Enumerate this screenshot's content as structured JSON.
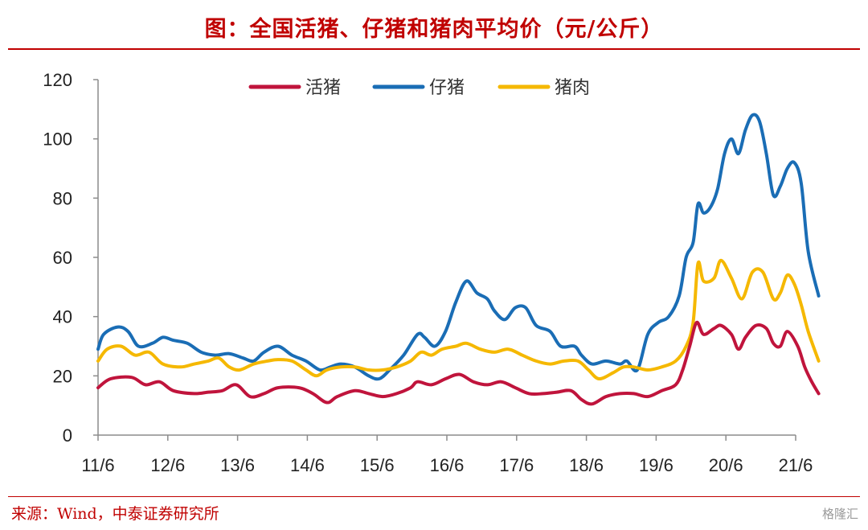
{
  "title": "图：全国活猪、仔猪和猪肉平均价（元/公斤）",
  "source": "来源：Wind，中泰证券研究所",
  "watermark": "格隆汇",
  "chart_data": {
    "type": "line",
    "xlabel": "",
    "ylabel": "",
    "ylim": [
      0,
      120
    ],
    "yticks": [
      "0",
      "20",
      "40",
      "60",
      "80",
      "100",
      "120"
    ],
    "xticks": [
      "11/6",
      "12/6",
      "13/6",
      "14/6",
      "15/6",
      "16/6",
      "17/6",
      "18/6",
      "19/6",
      "20/6",
      "21/6"
    ],
    "grid": false,
    "legend_position": "top-center",
    "series": [
      {
        "name": "活猪",
        "color": "#c0143c",
        "points": [
          [
            2011.42,
            16
          ],
          [
            2011.6,
            19
          ],
          [
            2011.9,
            19.5
          ],
          [
            2012.1,
            17
          ],
          [
            2012.3,
            18
          ],
          [
            2012.5,
            15
          ],
          [
            2012.8,
            14
          ],
          [
            2013.0,
            14.5
          ],
          [
            2013.2,
            15
          ],
          [
            2013.4,
            17
          ],
          [
            2013.6,
            13
          ],
          [
            2013.8,
            14
          ],
          [
            2014.0,
            16
          ],
          [
            2014.3,
            16
          ],
          [
            2014.5,
            14
          ],
          [
            2014.7,
            11
          ],
          [
            2014.85,
            13
          ],
          [
            2015.1,
            15
          ],
          [
            2015.3,
            14
          ],
          [
            2015.5,
            13
          ],
          [
            2015.7,
            14
          ],
          [
            2015.9,
            16
          ],
          [
            2016.0,
            18
          ],
          [
            2016.2,
            17
          ],
          [
            2016.4,
            19
          ],
          [
            2016.6,
            20.5
          ],
          [
            2016.8,
            18
          ],
          [
            2017.0,
            17
          ],
          [
            2017.2,
            18
          ],
          [
            2017.4,
            16
          ],
          [
            2017.6,
            14
          ],
          [
            2017.8,
            14
          ],
          [
            2018.0,
            14.5
          ],
          [
            2018.2,
            15
          ],
          [
            2018.35,
            12
          ],
          [
            2018.5,
            10.5
          ],
          [
            2018.7,
            13
          ],
          [
            2018.9,
            14
          ],
          [
            2019.1,
            14
          ],
          [
            2019.3,
            13
          ],
          [
            2019.5,
            15
          ],
          [
            2019.7,
            17
          ],
          [
            2019.8,
            22
          ],
          [
            2019.9,
            30
          ],
          [
            2020.0,
            38
          ],
          [
            2020.1,
            34
          ],
          [
            2020.25,
            36
          ],
          [
            2020.35,
            37
          ],
          [
            2020.5,
            34
          ],
          [
            2020.6,
            29
          ],
          [
            2020.7,
            33
          ],
          [
            2020.85,
            37
          ],
          [
            2021.0,
            36
          ],
          [
            2021.1,
            31
          ],
          [
            2021.2,
            30
          ],
          [
            2021.3,
            35
          ],
          [
            2021.45,
            30
          ],
          [
            2021.55,
            23
          ],
          [
            2021.65,
            18
          ],
          [
            2021.75,
            14
          ]
        ]
      },
      {
        "name": "仔猪",
        "color": "#1a6db5",
        "points": [
          [
            2011.42,
            29
          ],
          [
            2011.5,
            34
          ],
          [
            2011.7,
            36.5
          ],
          [
            2011.85,
            35
          ],
          [
            2012.0,
            30
          ],
          [
            2012.2,
            31
          ],
          [
            2012.35,
            33
          ],
          [
            2012.5,
            32
          ],
          [
            2012.7,
            31
          ],
          [
            2012.9,
            28
          ],
          [
            2013.1,
            27
          ],
          [
            2013.3,
            27.5
          ],
          [
            2013.5,
            26
          ],
          [
            2013.65,
            25
          ],
          [
            2013.8,
            28
          ],
          [
            2014.0,
            30
          ],
          [
            2014.2,
            27
          ],
          [
            2014.4,
            25
          ],
          [
            2014.6,
            22
          ],
          [
            2014.75,
            23
          ],
          [
            2014.9,
            24
          ],
          [
            2015.1,
            23
          ],
          [
            2015.3,
            20
          ],
          [
            2015.45,
            19
          ],
          [
            2015.6,
            22
          ],
          [
            2015.8,
            27
          ],
          [
            2016.0,
            34
          ],
          [
            2016.1,
            33
          ],
          [
            2016.25,
            30
          ],
          [
            2016.4,
            35
          ],
          [
            2016.55,
            45
          ],
          [
            2016.7,
            52
          ],
          [
            2016.85,
            48
          ],
          [
            2017.0,
            46
          ],
          [
            2017.1,
            42
          ],
          [
            2017.25,
            39
          ],
          [
            2017.4,
            43
          ],
          [
            2017.55,
            43
          ],
          [
            2017.7,
            37
          ],
          [
            2017.9,
            35
          ],
          [
            2018.05,
            30
          ],
          [
            2018.25,
            30
          ],
          [
            2018.35,
            27
          ],
          [
            2018.5,
            24
          ],
          [
            2018.7,
            25
          ],
          [
            2018.9,
            24
          ],
          [
            2019.0,
            25
          ],
          [
            2019.15,
            22
          ],
          [
            2019.3,
            34
          ],
          [
            2019.45,
            38
          ],
          [
            2019.6,
            40
          ],
          [
            2019.75,
            47
          ],
          [
            2019.85,
            60
          ],
          [
            2019.95,
            65
          ],
          [
            2020.02,
            78
          ],
          [
            2020.1,
            75
          ],
          [
            2020.2,
            77
          ],
          [
            2020.3,
            83
          ],
          [
            2020.4,
            95
          ],
          [
            2020.5,
            100
          ],
          [
            2020.6,
            95
          ],
          [
            2020.7,
            103
          ],
          [
            2020.8,
            108
          ],
          [
            2020.9,
            106
          ],
          [
            2021.0,
            95
          ],
          [
            2021.1,
            81
          ],
          [
            2021.2,
            84
          ],
          [
            2021.3,
            90
          ],
          [
            2021.4,
            92
          ],
          [
            2021.5,
            85
          ],
          [
            2021.6,
            62
          ],
          [
            2021.75,
            47
          ]
        ]
      },
      {
        "name": "猪肉",
        "color": "#f5b800",
        "points": [
          [
            2011.42,
            25
          ],
          [
            2011.55,
            29
          ],
          [
            2011.75,
            30
          ],
          [
            2011.95,
            27
          ],
          [
            2012.15,
            28
          ],
          [
            2012.35,
            24
          ],
          [
            2012.6,
            23
          ],
          [
            2012.8,
            24
          ],
          [
            2013.0,
            25
          ],
          [
            2013.15,
            26
          ],
          [
            2013.3,
            23
          ],
          [
            2013.45,
            22
          ],
          [
            2013.65,
            24
          ],
          [
            2013.85,
            25
          ],
          [
            2014.0,
            25.5
          ],
          [
            2014.2,
            25
          ],
          [
            2014.4,
            22
          ],
          [
            2014.55,
            20
          ],
          [
            2014.7,
            22
          ],
          [
            2014.9,
            23
          ],
          [
            2015.1,
            23
          ],
          [
            2015.3,
            22
          ],
          [
            2015.5,
            22
          ],
          [
            2015.7,
            23
          ],
          [
            2015.9,
            25
          ],
          [
            2016.05,
            28
          ],
          [
            2016.2,
            27
          ],
          [
            2016.35,
            29
          ],
          [
            2016.55,
            30
          ],
          [
            2016.7,
            31
          ],
          [
            2016.9,
            29
          ],
          [
            2017.1,
            28
          ],
          [
            2017.3,
            29
          ],
          [
            2017.5,
            27
          ],
          [
            2017.7,
            25
          ],
          [
            2017.9,
            24
          ],
          [
            2018.1,
            25
          ],
          [
            2018.3,
            25
          ],
          [
            2018.45,
            22
          ],
          [
            2018.6,
            19
          ],
          [
            2018.8,
            21
          ],
          [
            2018.95,
            23
          ],
          [
            2019.1,
            23
          ],
          [
            2019.3,
            22
          ],
          [
            2019.5,
            23
          ],
          [
            2019.7,
            25
          ],
          [
            2019.85,
            30
          ],
          [
            2019.95,
            38
          ],
          [
            2020.02,
            58
          ],
          [
            2020.1,
            52
          ],
          [
            2020.25,
            53
          ],
          [
            2020.35,
            59
          ],
          [
            2020.5,
            53
          ],
          [
            2020.65,
            46
          ],
          [
            2020.8,
            55
          ],
          [
            2020.95,
            55
          ],
          [
            2021.1,
            46
          ],
          [
            2021.2,
            48
          ],
          [
            2021.3,
            54
          ],
          [
            2021.4,
            51
          ],
          [
            2021.5,
            44
          ],
          [
            2021.6,
            35
          ],
          [
            2021.75,
            25
          ]
        ]
      }
    ]
  }
}
